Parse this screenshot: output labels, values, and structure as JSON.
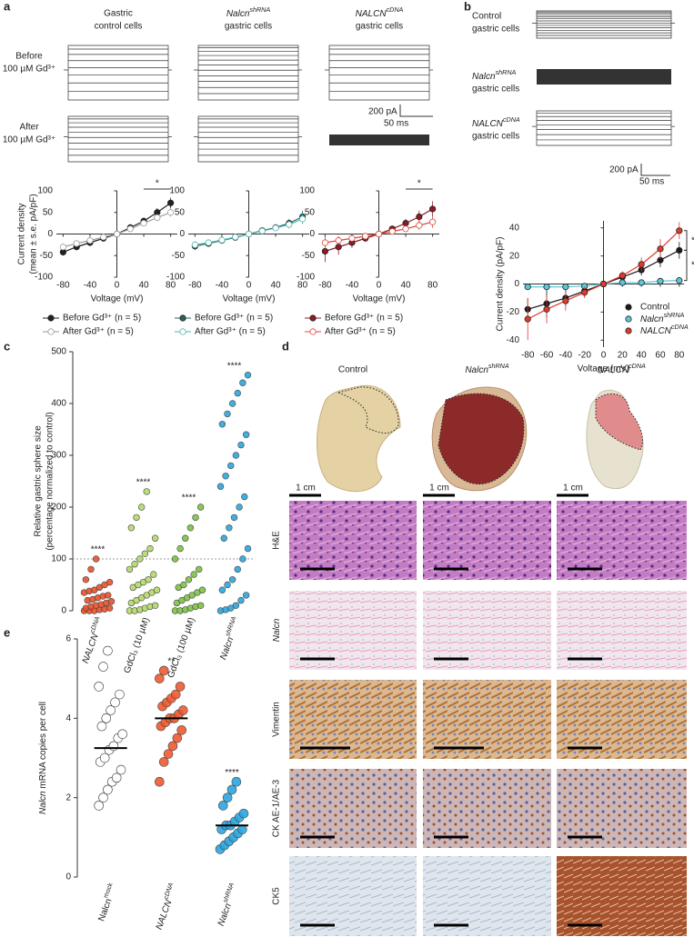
{
  "panel_labels": {
    "a": "a",
    "b": "b",
    "c": "c",
    "d": "d",
    "e": "e"
  },
  "panel_a": {
    "column_titles": [
      [
        "Gastric",
        "control cells"
      ],
      [
        {
          "base": "Nalcn",
          "sup": "shRNA"
        },
        "gastric cells"
      ],
      [
        {
          "base": "NALCN",
          "sup": "cDNA"
        },
        "gastric cells"
      ]
    ],
    "row_labels": [
      [
        "Before",
        "100 µM Gd³⁺"
      ],
      [
        "After",
        "100 µM Gd³⁺"
      ]
    ],
    "scale_bar": [
      "200 pA",
      "50 ms"
    ]
  },
  "panel_b": {
    "row_labels": [
      [
        "Control",
        "gastric cells"
      ],
      [
        {
          "base": "Nalcn",
          "sup": "shRNA"
        },
        "gastric cells"
      ],
      [
        {
          "base": "NALCN",
          "sup": "cDNA"
        },
        "gastric cells"
      ]
    ],
    "scale_bar": [
      "200 pA",
      "50 ms"
    ]
  },
  "panel_d": {
    "column_titles": [
      "Control",
      {
        "base": "Nalcn",
        "sup": "shRNA"
      },
      {
        "base": "NALCN",
        "sup": "cDNA"
      }
    ],
    "scale_label": "1 cm",
    "row_labels": [
      "H&E",
      {
        "base": "Nalcn"
      },
      "Vimentin",
      "CK AE-1/AE-3",
      "CK5"
    ]
  },
  "chart_data": [
    {
      "type": "line",
      "ylabel": [
        "Current density",
        "(mean ± s.e. pA/pF)"
      ],
      "xlabel": "Voltage (mV)",
      "x": [
        -80,
        -60,
        -40,
        -20,
        0,
        20,
        40,
        60,
        80
      ],
      "xlim": [
        -90,
        90
      ],
      "xticks": [
        -80,
        -40,
        0,
        40,
        80
      ],
      "ylim": [
        -100,
        100
      ],
      "yticks": [
        -100,
        -50,
        0,
        50,
        100
      ],
      "annotation": "*",
      "series": [
        {
          "name": "Before Gd³⁺ (n = 5)",
          "color": "#222222",
          "marker": "filled",
          "values": [
            -42,
            -30,
            -20,
            -10,
            0,
            15,
            30,
            50,
            72
          ],
          "errors": [
            8,
            6,
            5,
            4,
            2,
            5,
            8,
            10,
            12
          ]
        },
        {
          "name": "After Gd³⁺ (n = 5)",
          "color": "#9a9a9a",
          "marker": "open",
          "values": [
            -30,
            -22,
            -15,
            -7,
            0,
            12,
            25,
            38,
            50
          ],
          "errors": [
            7,
            5,
            4,
            3,
            2,
            4,
            6,
            8,
            10
          ]
        }
      ]
    },
    {
      "type": "line",
      "xlabel": "Voltage (mV)",
      "x": [
        -80,
        -60,
        -40,
        -20,
        0,
        20,
        40,
        60,
        80
      ],
      "xlim": [
        -90,
        90
      ],
      "xticks": [
        -80,
        -40,
        0,
        40,
        80
      ],
      "ylim": [
        -100,
        100
      ],
      "yticks": [
        -100,
        -50,
        0,
        50,
        100
      ],
      "series": [
        {
          "name": "Before Gd³⁺ (n = 5)",
          "color": "#2f5f5a",
          "marker": "filled",
          "values": [
            -28,
            -22,
            -15,
            -8,
            0,
            8,
            15,
            25,
            40
          ],
          "errors": [
            9,
            7,
            5,
            4,
            2,
            4,
            6,
            10,
            14
          ]
        },
        {
          "name": "After Gd³⁺ (n = 5)",
          "color": "#4fb3b0",
          "marker": "open",
          "values": [
            -25,
            -20,
            -14,
            -7,
            0,
            7,
            14,
            22,
            35
          ],
          "errors": [
            8,
            6,
            5,
            3,
            2,
            4,
            6,
            9,
            12
          ]
        }
      ]
    },
    {
      "type": "line",
      "xlabel": "Voltage (mV)",
      "x": [
        -80,
        -60,
        -40,
        -20,
        0,
        20,
        40,
        60,
        80
      ],
      "xlim": [
        -90,
        90
      ],
      "xticks": [
        -80,
        -40,
        0,
        40,
        80
      ],
      "ylim": [
        -100,
        100
      ],
      "yticks": [
        -100,
        -50,
        0,
        50,
        100
      ],
      "annotation": "*",
      "series": [
        {
          "name": "Before Gd³⁺ (n = 5)",
          "color": "#8a1c24",
          "marker": "filled",
          "values": [
            -40,
            -30,
            -20,
            -10,
            0,
            12,
            25,
            40,
            58
          ],
          "errors": [
            25,
            18,
            12,
            7,
            3,
            6,
            10,
            14,
            18
          ]
        },
        {
          "name": "After Gd³⁺ (n = 5)",
          "color": "#e0443a",
          "marker": "open",
          "values": [
            -20,
            -15,
            -10,
            -5,
            0,
            6,
            12,
            20,
            28
          ],
          "errors": [
            15,
            10,
            7,
            4,
            2,
            4,
            7,
            10,
            14
          ]
        }
      ]
    },
    {
      "type": "line",
      "ylabel": "Current density (pA/pF)",
      "xlabel": "Voltage (mV)",
      "x": [
        -80,
        -60,
        -40,
        -20,
        0,
        20,
        40,
        60,
        80
      ],
      "xlim": [
        -85,
        85
      ],
      "xticks": [
        -80,
        -60,
        -40,
        -20,
        0,
        20,
        40,
        60,
        80
      ],
      "ylim": [
        -45,
        45
      ],
      "yticks": [
        -40,
        -20,
        0,
        20,
        40
      ],
      "legend": "lower right",
      "annotations": [
        "*",
        "*"
      ],
      "series": [
        {
          "name": "Control",
          "color": "#1a1a1a",
          "marker": "filled",
          "values": [
            -18,
            -14,
            -10,
            -5,
            0,
            5,
            10,
            17,
            24
          ],
          "errors": [
            8,
            10,
            6,
            4,
            1,
            3,
            4,
            5,
            6
          ]
        },
        {
          "name": {
            "base": "Nalcn",
            "sup": "shRNA"
          },
          "color": "#5bc8d8",
          "marker": "filled",
          "values": [
            -2,
            -2,
            -2,
            -1.5,
            0,
            1,
            1,
            2,
            2.5
          ],
          "errors": [
            1.5,
            1.5,
            1,
            1,
            0.5,
            1,
            1,
            2,
            2.5
          ]
        },
        {
          "name": {
            "base": "NALCN",
            "sup": "cDNA"
          },
          "color": "#e03a2f",
          "marker": "filled",
          "values": [
            -25,
            -18,
            -12,
            -6,
            0,
            6,
            14,
            25,
            38
          ],
          "errors": [
            15,
            10,
            7,
            4,
            1,
            3,
            5,
            7,
            6
          ]
        }
      ]
    },
    {
      "type": "strip",
      "ylabel": [
        "Relative gastric sphere size",
        "(percentage normalized to control)"
      ],
      "ylim": [
        0,
        500
      ],
      "yticks": [
        0,
        100,
        200,
        300,
        400,
        500
      ],
      "reference_line": 100,
      "categories": [
        {
          "base": "NALCN",
          "sup": "cDNA"
        },
        "GdCl₃ (10 µM)",
        "GdCl₃ (100 µM)",
        {
          "base": "Nalcn",
          "sup": "shRNA"
        }
      ],
      "series": [
        {
          "color": "#e8502b",
          "annotation": "****",
          "values": [
            0,
            0,
            0,
            2,
            3,
            5,
            5,
            8,
            10,
            12,
            15,
            18,
            20,
            22,
            25,
            28,
            30,
            35,
            38,
            40,
            45,
            50,
            55,
            60,
            80,
            100
          ]
        },
        {
          "color": "#b5d86a",
          "annotation": "****",
          "values": [
            0,
            0,
            2,
            5,
            8,
            10,
            15,
            20,
            25,
            30,
            35,
            40,
            45,
            50,
            55,
            60,
            70,
            80,
            90,
            100,
            110,
            120,
            140,
            160,
            180,
            200,
            230
          ]
        },
        {
          "color": "#7dc242",
          "annotation": "****",
          "values": [
            0,
            0,
            2,
            5,
            8,
            10,
            15,
            20,
            25,
            30,
            35,
            40,
            45,
            50,
            60,
            70,
            80,
            100,
            120,
            140,
            160,
            180,
            200
          ]
        },
        {
          "color": "#2aa6d9",
          "annotation": "****",
          "values": [
            0,
            2,
            5,
            10,
            20,
            30,
            40,
            50,
            60,
            80,
            100,
            120,
            140,
            160,
            180,
            200,
            220,
            240,
            260,
            280,
            300,
            320,
            340,
            360,
            380,
            400,
            420,
            440,
            455
          ]
        }
      ]
    },
    {
      "type": "strip",
      "ylabel": {
        "base": "Nalcn",
        "after": " mRNA copies per cell"
      },
      "ylim": [
        0,
        6
      ],
      "yticks": [
        0,
        2,
        4,
        6
      ],
      "categories": [
        {
          "after": "Nalcn",
          "sup": "mock"
        },
        {
          "base": "NALCN",
          "sup": "cDNA"
        },
        {
          "base": "Nalcn",
          "sup": "shRNA"
        }
      ],
      "series": [
        {
          "color": "#ffffff",
          "median": 3.25,
          "values": [
            1.8,
            2.0,
            2.2,
            2.4,
            2.5,
            2.7,
            2.9,
            3.0,
            3.2,
            3.3,
            3.5,
            3.6,
            3.8,
            4.0,
            4.2,
            4.4,
            4.6,
            4.8,
            5.3,
            5.7
          ]
        },
        {
          "color": "#ee5a2f",
          "median": 4.0,
          "annotation": "**",
          "values": [
            2.4,
            2.9,
            3.1,
            3.3,
            3.5,
            3.7,
            3.8,
            3.9,
            4.0,
            4.0,
            4.1,
            4.2,
            4.3,
            4.4,
            4.5,
            4.6,
            4.8,
            5.0,
            5.2
          ]
        },
        {
          "color": "#2aa6e0",
          "median": 1.3,
          "annotation": "****",
          "values": [
            0.7,
            0.8,
            0.9,
            1.0,
            1.1,
            1.2,
            1.2,
            1.3,
            1.3,
            1.4,
            1.5,
            1.6,
            1.8,
            2.0,
            2.2,
            2.4
          ]
        }
      ]
    }
  ]
}
